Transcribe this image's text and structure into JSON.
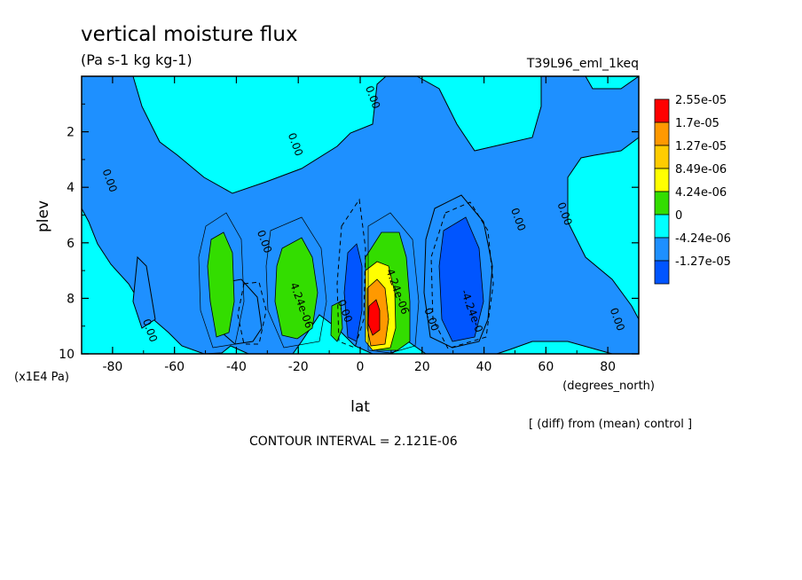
{
  "chart_data": {
    "type": "heatmap",
    "title": "vertical moisture flux",
    "units": "(Pa s-1 kg kg-1)",
    "experiment": "T39L96_eml_1keq",
    "xlabel": "lat",
    "x_units": "(degrees_north)",
    "ylabel": "plev",
    "y_units": "(x1E4 Pa)",
    "xlim": [
      -90,
      90
    ],
    "ylim": [
      0,
      10
    ],
    "y_reversed": true,
    "x_ticks": [
      "-80",
      "-60",
      "-40",
      "-20",
      "0",
      "20",
      "40",
      "60",
      "80"
    ],
    "x_tick_values": [
      -80,
      -60,
      -40,
      -20,
      0,
      20,
      40,
      60,
      80
    ],
    "y_ticks": [
      "2",
      "4",
      "6",
      "8",
      "10"
    ],
    "y_tick_values": [
      2,
      4,
      6,
      8,
      10
    ],
    "colorbar": {
      "labels": [
        "2.55e-05",
        "1.7e-05",
        "1.27e-05",
        "8.49e-06",
        "4.24e-06",
        "0",
        "-4.24e-06",
        "-1.27e-05"
      ],
      "colors": [
        "#ff0000",
        "#ff9900",
        "#ffcc00",
        "#ffff00",
        "#33dd00",
        "#00ffff",
        "#1e90ff",
        "#0055ff"
      ]
    },
    "background_color": "#00ffff",
    "contour_labels": [
      {
        "text": "0.00",
        "lat": 3,
        "plev": 0.8
      },
      {
        "text": "0.00",
        "lat": -22,
        "plev": 2.5
      },
      {
        "text": "0.00",
        "lat": -82,
        "plev": 3.8
      },
      {
        "text": "0.00",
        "lat": -32,
        "plev": 6.0
      },
      {
        "text": "4.24e-06",
        "lat": -20,
        "plev": 8.3
      },
      {
        "text": "0.00",
        "lat": -6,
        "plev": 8.5
      },
      {
        "text": "4.24e-06",
        "lat": 11,
        "plev": 7.8
      },
      {
        "text": "0.00",
        "lat": 22,
        "plev": 8.8
      },
      {
        "text": "-4.24e-0",
        "lat": 35,
        "plev": 8.5
      },
      {
        "text": "0.00",
        "lat": 50,
        "plev": 5.2
      },
      {
        "text": "0.00",
        "lat": 65,
        "plev": 5.0
      },
      {
        "text": "0.00",
        "lat": 82,
        "plev": 8.8
      },
      {
        "text": "0.00",
        "lat": -69,
        "plev": 9.2
      }
    ],
    "footer": {
      "diff_note": "[ (diff) from (mean) control ]",
      "contour_interval": "CONTOUR INTERVAL = 2.121E-06"
    }
  }
}
